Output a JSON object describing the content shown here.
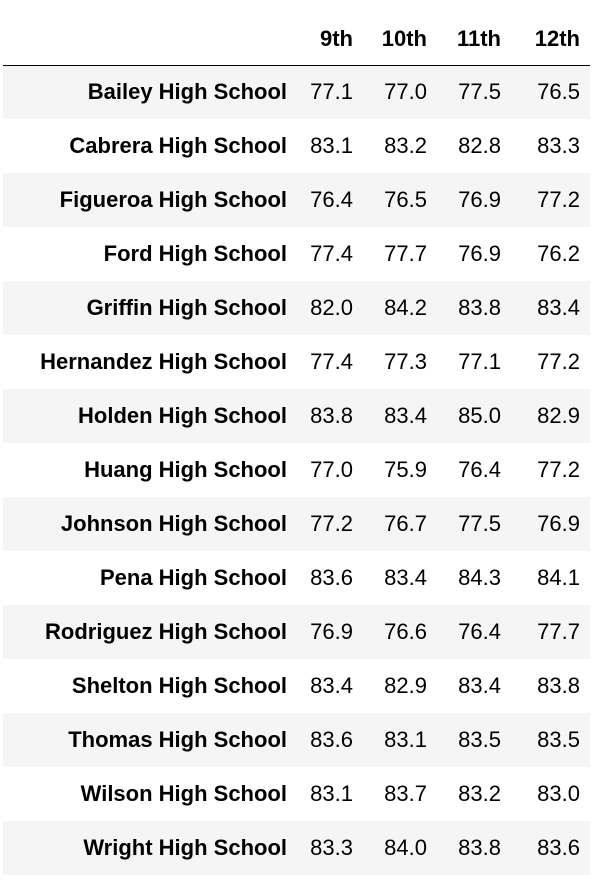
{
  "table": {
    "index_header": "",
    "columns": [
      "9th",
      "10th",
      "11th",
      "12th"
    ],
    "rows": [
      {
        "school": "Bailey High School",
        "values": [
          "77.1",
          "77.0",
          "77.5",
          "76.5"
        ]
      },
      {
        "school": "Cabrera High School",
        "values": [
          "83.1",
          "83.2",
          "82.8",
          "83.3"
        ]
      },
      {
        "school": "Figueroa High School",
        "values": [
          "76.4",
          "76.5",
          "76.9",
          "77.2"
        ]
      },
      {
        "school": "Ford High School",
        "values": [
          "77.4",
          "77.7",
          "76.9",
          "76.2"
        ]
      },
      {
        "school": "Griffin High School",
        "values": [
          "82.0",
          "84.2",
          "83.8",
          "83.4"
        ]
      },
      {
        "school": "Hernandez High School",
        "values": [
          "77.4",
          "77.3",
          "77.1",
          "77.2"
        ]
      },
      {
        "school": "Holden High School",
        "values": [
          "83.8",
          "83.4",
          "85.0",
          "82.9"
        ]
      },
      {
        "school": "Huang High School",
        "values": [
          "77.0",
          "75.9",
          "76.4",
          "77.2"
        ]
      },
      {
        "school": "Johnson High School",
        "values": [
          "77.2",
          "76.7",
          "77.5",
          "76.9"
        ]
      },
      {
        "school": "Pena High School",
        "values": [
          "83.6",
          "83.4",
          "84.3",
          "84.1"
        ]
      },
      {
        "school": "Rodriguez High School",
        "values": [
          "76.9",
          "76.6",
          "76.4",
          "77.7"
        ]
      },
      {
        "school": "Shelton High School",
        "values": [
          "83.4",
          "82.9",
          "83.4",
          "83.8"
        ]
      },
      {
        "school": "Thomas High School",
        "values": [
          "83.6",
          "83.1",
          "83.5",
          "83.5"
        ]
      },
      {
        "school": "Wilson High School",
        "values": [
          "83.1",
          "83.7",
          "83.2",
          "83.0"
        ]
      },
      {
        "school": "Wright High School",
        "values": [
          "83.3",
          "84.0",
          "83.8",
          "83.6"
        ]
      }
    ]
  }
}
